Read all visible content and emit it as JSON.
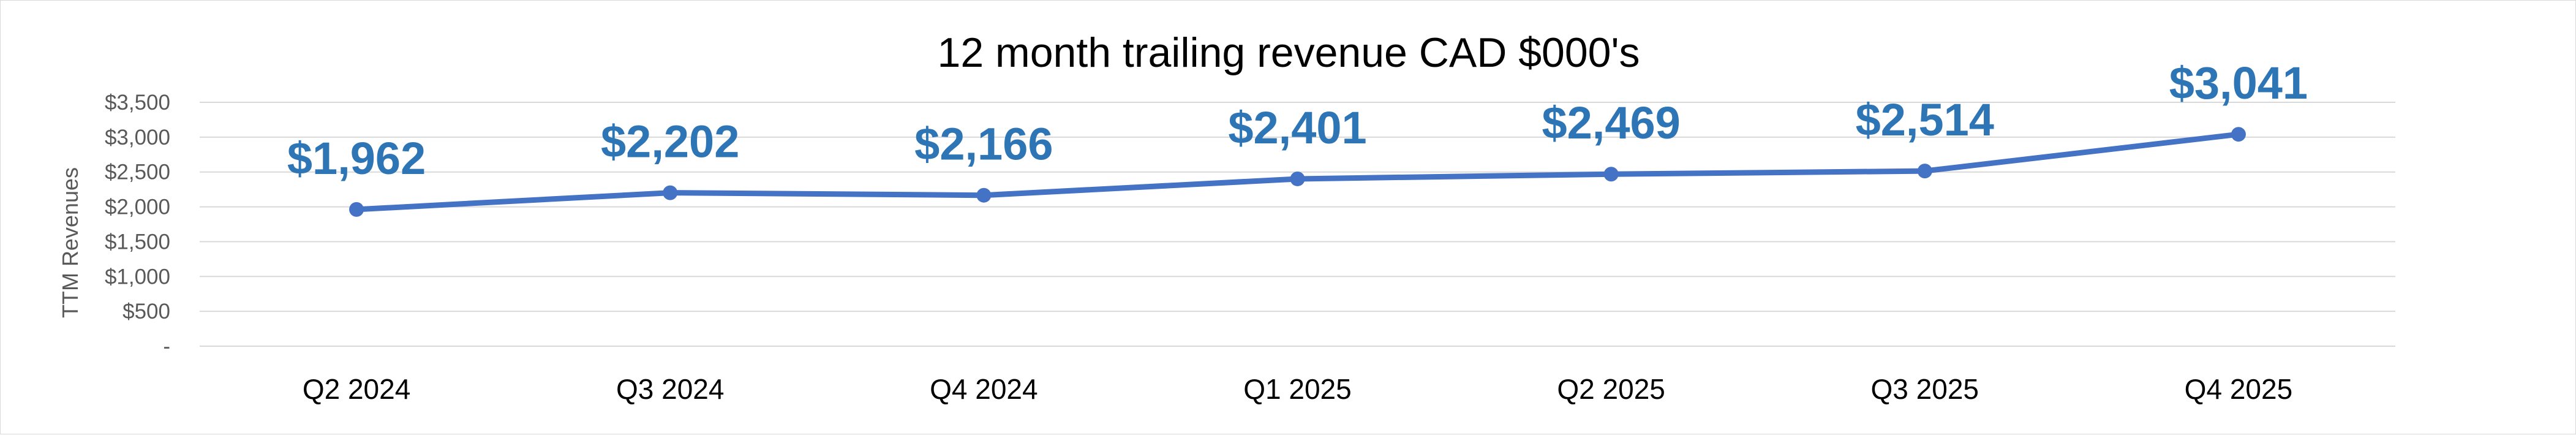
{
  "chart_data": {
    "type": "line",
    "title": "12 month trailing revenue CAD $000's",
    "xlabel": "",
    "ylabel": "TTM Revenues",
    "categories": [
      "Q2 2024",
      "Q3 2024",
      "Q4 2024",
      "Q1 2025",
      "Q2 2025",
      "Q3 2025",
      "Q4 2025"
    ],
    "series": [
      {
        "values": [
          1962,
          2202,
          2166,
          2401,
          2469,
          2514,
          3041
        ],
        "data_labels": [
          "$1,962",
          "$2,202",
          "$2,166",
          "$2,401",
          "$2,469",
          "$2,514",
          "$3,041"
        ],
        "color": "#4472c4"
      }
    ],
    "ylim": [
      0,
      3500
    ],
    "yticks": [
      0,
      500,
      1000,
      1500,
      2000,
      2500,
      3000,
      3500
    ],
    "ytick_labels": [
      "-",
      "$500",
      "$1,000",
      "$1,500",
      "$2,000",
      "$2,500",
      "$3,000",
      "$3,500"
    ],
    "grid": true,
    "legend": "none",
    "colors": {
      "line": "#4472c4",
      "data_label": "#2e75b6",
      "grid": "#d9d9d9"
    }
  }
}
